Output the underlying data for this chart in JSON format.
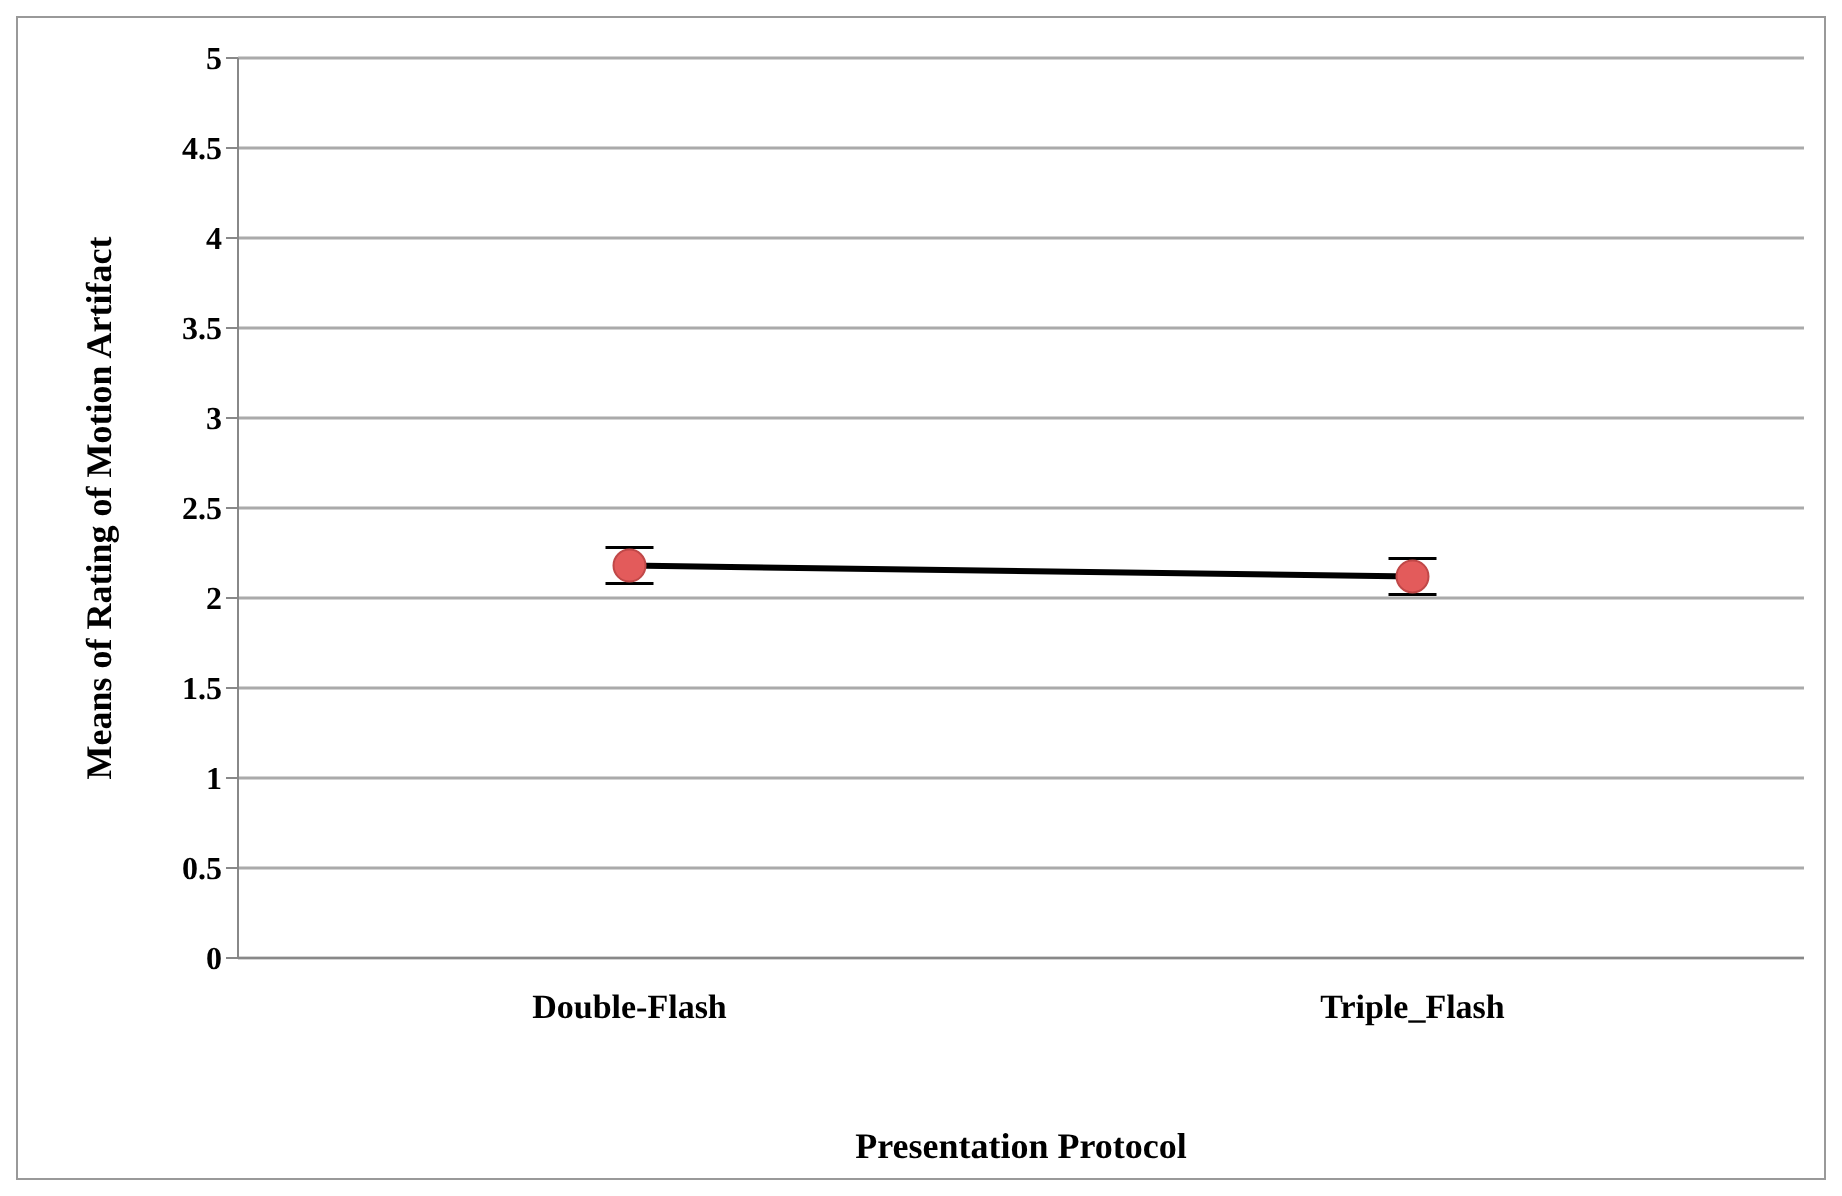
{
  "chart_data": {
    "type": "line",
    "xlabel": "Presentation Protocol",
    "ylabel": "Means of Rating of Motion Artifact",
    "categories": [
      "Double-Flash",
      "Triple_Flash"
    ],
    "series": [
      {
        "color": "#000000",
        "values": [
          2.18,
          2.12
        ],
        "errors": [
          0.1,
          0.1
        ]
      }
    ],
    "marker": "circle",
    "line_style": "solid",
    "ylim": [
      0,
      5
    ],
    "yticks": [
      0,
      0.5,
      1,
      1.5,
      2,
      2.5,
      3,
      3.5,
      4,
      4.5,
      5
    ],
    "grid": "y"
  }
}
